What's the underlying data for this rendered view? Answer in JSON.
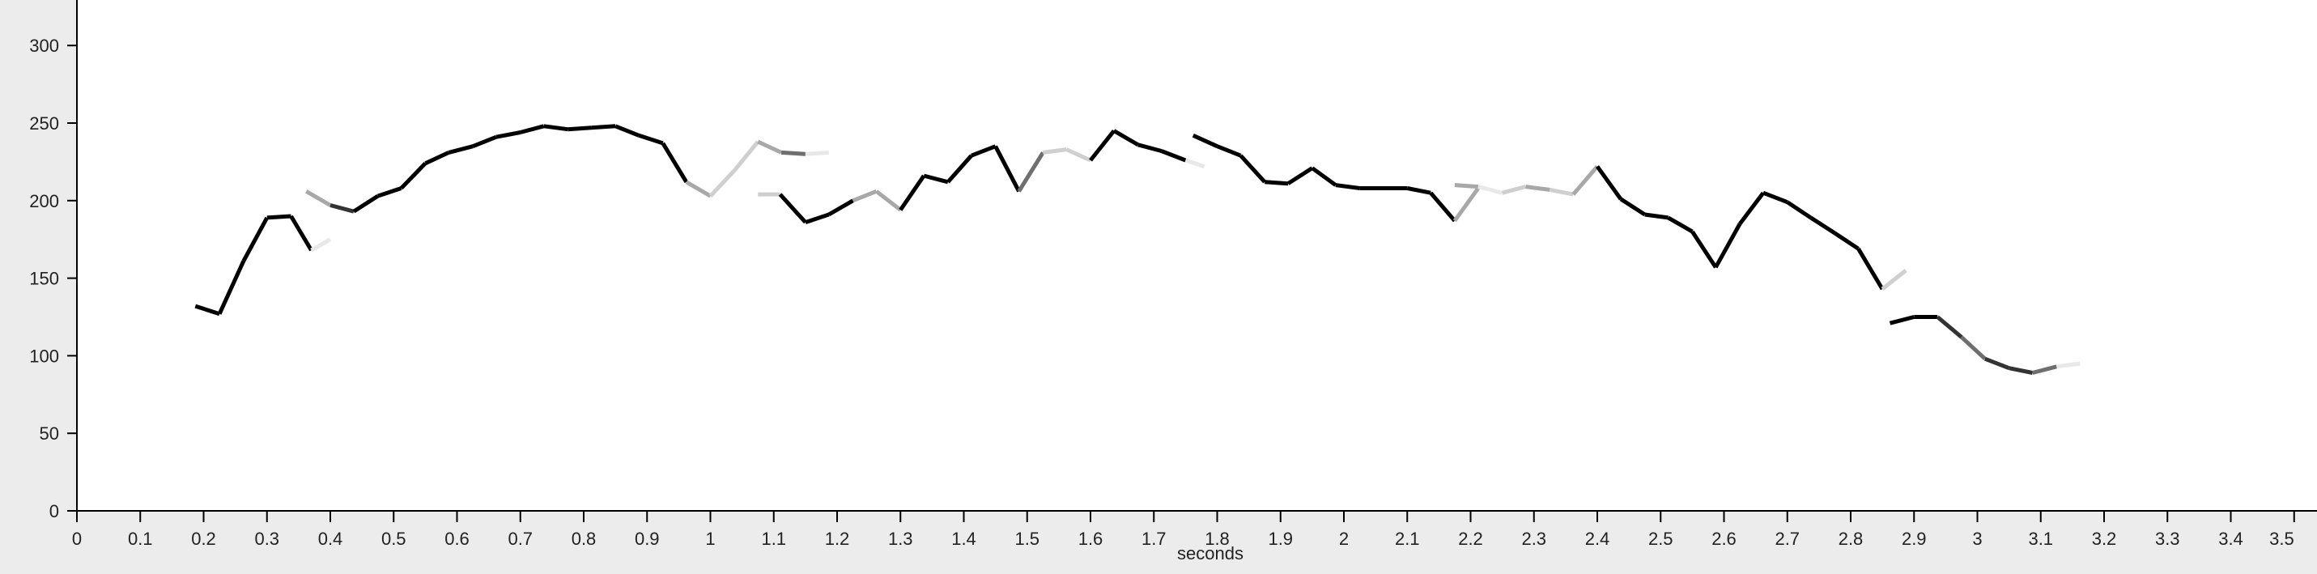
{
  "chart_data": {
    "type": "line",
    "title": "",
    "xlabel": "seconds",
    "ylabel": "",
    "xlim": [
      0,
      3.5
    ],
    "ylim": [
      0,
      300
    ],
    "grid": false,
    "x_ticks": [
      "0",
      "0.1",
      "0.2",
      "0.3",
      "0.4",
      "0.5",
      "0.6",
      "0.7",
      "0.8",
      "0.9",
      "1",
      "1.1",
      "1.2",
      "1.3",
      "1.4",
      "1.5",
      "1.6",
      "1.7",
      "1.8",
      "1.9",
      "2",
      "2.1",
      "2.2",
      "2.3",
      "2.4",
      "2.5",
      "2.6",
      "2.7",
      "2.8",
      "2.9",
      "3",
      "3.1",
      "3.2",
      "3.3",
      "3.4",
      "3.5"
    ],
    "y_ticks": [
      "0",
      "50",
      "100",
      "150",
      "200",
      "250",
      "300"
    ],
    "colors": {
      "background": "#ececec",
      "plot_background": "#ffffff",
      "axis": "#000000",
      "trace_shades": [
        "#000000",
        "#333333",
        "#6e6e6e",
        "#a8a8a8",
        "#cfcfcf",
        "#e8e8e8"
      ]
    },
    "segments": [
      {
        "x": [
          0.187,
          0.225
        ],
        "y": [
          132,
          127
        ],
        "color": "#000000"
      },
      {
        "x": [
          0.225,
          0.263
        ],
        "y": [
          127,
          161
        ],
        "color": "#000000"
      },
      {
        "x": [
          0.263,
          0.3
        ],
        "y": [
          161,
          189
        ],
        "color": "#000000"
      },
      {
        "x": [
          0.3,
          0.338
        ],
        "y": [
          189,
          190
        ],
        "color": "#000000"
      },
      {
        "x": [
          0.338,
          0.37
        ],
        "y": [
          190,
          168
        ],
        "color": "#000000"
      },
      {
        "x": [
          0.37,
          0.4
        ],
        "y": [
          168,
          175
        ],
        "color": "#e8e8e8"
      },
      {
        "x": [
          0.362,
          0.4
        ],
        "y": [
          206,
          197
        ],
        "color": "#a8a8a8"
      },
      {
        "x": [
          0.4,
          0.437
        ],
        "y": [
          197,
          193
        ],
        "color": "#333333"
      },
      {
        "x": [
          0.437,
          0.475
        ],
        "y": [
          193,
          203
        ],
        "color": "#000000"
      },
      {
        "x": [
          0.475,
          0.512
        ],
        "y": [
          203,
          208
        ],
        "color": "#000000"
      },
      {
        "x": [
          0.512,
          0.55
        ],
        "y": [
          208,
          224
        ],
        "color": "#000000"
      },
      {
        "x": [
          0.55,
          0.587
        ],
        "y": [
          224,
          231
        ],
        "color": "#000000"
      },
      {
        "x": [
          0.587,
          0.625
        ],
        "y": [
          231,
          235
        ],
        "color": "#000000"
      },
      {
        "x": [
          0.625,
          0.662
        ],
        "y": [
          235,
          241
        ],
        "color": "#000000"
      },
      {
        "x": [
          0.662,
          0.7
        ],
        "y": [
          241,
          244
        ],
        "color": "#000000"
      },
      {
        "x": [
          0.7,
          0.737
        ],
        "y": [
          244,
          248
        ],
        "color": "#000000"
      },
      {
        "x": [
          0.737,
          0.775
        ],
        "y": [
          248,
          246
        ],
        "color": "#000000"
      },
      {
        "x": [
          0.775,
          0.812
        ],
        "y": [
          246,
          247
        ],
        "color": "#000000"
      },
      {
        "x": [
          0.812,
          0.85
        ],
        "y": [
          247,
          248
        ],
        "color": "#000000"
      },
      {
        "x": [
          0.85,
          0.887
        ],
        "y": [
          248,
          242
        ],
        "color": "#000000"
      },
      {
        "x": [
          0.887,
          0.925
        ],
        "y": [
          242,
          237
        ],
        "color": "#000000"
      },
      {
        "x": [
          0.925,
          0.962
        ],
        "y": [
          237,
          212
        ],
        "color": "#000000"
      },
      {
        "x": [
          0.962,
          1.0
        ],
        "y": [
          212,
          203
        ],
        "color": "#a8a8a8"
      },
      {
        "x": [
          1.0,
          1.037
        ],
        "y": [
          203,
          219
        ],
        "color": "#cfcfcf"
      },
      {
        "x": [
          1.037,
          1.075
        ],
        "y": [
          219,
          238
        ],
        "color": "#cfcfcf"
      },
      {
        "x": [
          1.075,
          1.112
        ],
        "y": [
          238,
          231
        ],
        "color": "#a8a8a8"
      },
      {
        "x": [
          1.112,
          1.15
        ],
        "y": [
          231,
          230
        ],
        "color": "#6e6e6e"
      },
      {
        "x": [
          1.15,
          1.187
        ],
        "y": [
          230,
          231
        ],
        "color": "#e8e8e8"
      },
      {
        "x": [
          1.075,
          1.11
        ],
        "y": [
          204,
          204
        ],
        "color": "#cfcfcf"
      },
      {
        "x": [
          1.11,
          1.15
        ],
        "y": [
          204,
          186
        ],
        "color": "#000000"
      },
      {
        "x": [
          1.15,
          1.187
        ],
        "y": [
          186,
          191
        ],
        "color": "#000000"
      },
      {
        "x": [
          1.187,
          1.225
        ],
        "y": [
          191,
          200
        ],
        "color": "#000000"
      },
      {
        "x": [
          1.225,
          1.262
        ],
        "y": [
          200,
          206
        ],
        "color": "#a8a8a8"
      },
      {
        "x": [
          1.262,
          1.3
        ],
        "y": [
          206,
          194
        ],
        "color": "#a8a8a8"
      },
      {
        "x": [
          1.3,
          1.337
        ],
        "y": [
          194,
          216
        ],
        "color": "#000000"
      },
      {
        "x": [
          1.337,
          1.375
        ],
        "y": [
          216,
          212
        ],
        "color": "#000000"
      },
      {
        "x": [
          1.375,
          1.412
        ],
        "y": [
          212,
          229
        ],
        "color": "#000000"
      },
      {
        "x": [
          1.412,
          1.45
        ],
        "y": [
          229,
          235
        ],
        "color": "#000000"
      },
      {
        "x": [
          1.45,
          1.487
        ],
        "y": [
          235,
          206
        ],
        "color": "#000000"
      },
      {
        "x": [
          1.487,
          1.525
        ],
        "y": [
          206,
          231
        ],
        "color": "#6e6e6e"
      },
      {
        "x": [
          1.525,
          1.562
        ],
        "y": [
          231,
          233
        ],
        "color": "#cfcfcf"
      },
      {
        "x": [
          1.562,
          1.6
        ],
        "y": [
          233,
          226
        ],
        "color": "#cfcfcf"
      },
      {
        "x": [
          1.6,
          1.637
        ],
        "y": [
          226,
          245
        ],
        "color": "#000000"
      },
      {
        "x": [
          1.637,
          1.675
        ],
        "y": [
          245,
          236
        ],
        "color": "#000000"
      },
      {
        "x": [
          1.675,
          1.712
        ],
        "y": [
          236,
          232
        ],
        "color": "#000000"
      },
      {
        "x": [
          1.712,
          1.75
        ],
        "y": [
          232,
          226
        ],
        "color": "#000000"
      },
      {
        "x": [
          1.75,
          1.78
        ],
        "y": [
          226,
          222
        ],
        "color": "#e8e8e8"
      },
      {
        "x": [
          1.762,
          1.8
        ],
        "y": [
          242,
          235
        ],
        "color": "#000000"
      },
      {
        "x": [
          1.8,
          1.837
        ],
        "y": [
          235,
          229
        ],
        "color": "#000000"
      },
      {
        "x": [
          1.837,
          1.875
        ],
        "y": [
          229,
          212
        ],
        "color": "#000000"
      },
      {
        "x": [
          1.875,
          1.912
        ],
        "y": [
          212,
          211
        ],
        "color": "#000000"
      },
      {
        "x": [
          1.912,
          1.95
        ],
        "y": [
          211,
          221
        ],
        "color": "#000000"
      },
      {
        "x": [
          1.95,
          1.987
        ],
        "y": [
          221,
          210
        ],
        "color": "#000000"
      },
      {
        "x": [
          1.987,
          2.025
        ],
        "y": [
          210,
          208
        ],
        "color": "#000000"
      },
      {
        "x": [
          2.025,
          2.062
        ],
        "y": [
          208,
          208
        ],
        "color": "#000000"
      },
      {
        "x": [
          2.062,
          2.1
        ],
        "y": [
          208,
          208
        ],
        "color": "#000000"
      },
      {
        "x": [
          2.1,
          2.137
        ],
        "y": [
          208,
          205
        ],
        "color": "#000000"
      },
      {
        "x": [
          2.137,
          2.175
        ],
        "y": [
          205,
          187
        ],
        "color": "#000000"
      },
      {
        "x": [
          2.175,
          2.212
        ],
        "y": [
          187,
          208
        ],
        "color": "#a8a8a8"
      },
      {
        "x": [
          2.175,
          2.212
        ],
        "y": [
          210,
          209
        ],
        "color": "#a8a8a8"
      },
      {
        "x": [
          2.212,
          2.25
        ],
        "y": [
          209,
          205
        ],
        "color": "#e8e8e8"
      },
      {
        "x": [
          2.25,
          2.287
        ],
        "y": [
          205,
          209
        ],
        "color": "#cfcfcf"
      },
      {
        "x": [
          2.287,
          2.325
        ],
        "y": [
          209,
          207
        ],
        "color": "#a8a8a8"
      },
      {
        "x": [
          2.325,
          2.362
        ],
        "y": [
          207,
          204
        ],
        "color": "#cfcfcf"
      },
      {
        "x": [
          2.362,
          2.4
        ],
        "y": [
          204,
          222
        ],
        "color": "#a8a8a8"
      },
      {
        "x": [
          2.4,
          2.437
        ],
        "y": [
          222,
          201
        ],
        "color": "#000000"
      },
      {
        "x": [
          2.437,
          2.475
        ],
        "y": [
          201,
          191
        ],
        "color": "#000000"
      },
      {
        "x": [
          2.475,
          2.512
        ],
        "y": [
          191,
          189
        ],
        "color": "#000000"
      },
      {
        "x": [
          2.512,
          2.55
        ],
        "y": [
          189,
          180
        ],
        "color": "#000000"
      },
      {
        "x": [
          2.55,
          2.587
        ],
        "y": [
          180,
          157
        ],
        "color": "#000000"
      },
      {
        "x": [
          2.587,
          2.625
        ],
        "y": [
          157,
          185
        ],
        "color": "#000000"
      },
      {
        "x": [
          2.625,
          2.662
        ],
        "y": [
          185,
          205
        ],
        "color": "#000000"
      },
      {
        "x": [
          2.662,
          2.7
        ],
        "y": [
          205,
          199
        ],
        "color": "#000000"
      },
      {
        "x": [
          2.7,
          2.737
        ],
        "y": [
          199,
          189
        ],
        "color": "#000000"
      },
      {
        "x": [
          2.737,
          2.775
        ],
        "y": [
          189,
          179
        ],
        "color": "#000000"
      },
      {
        "x": [
          2.775,
          2.812
        ],
        "y": [
          179,
          169
        ],
        "color": "#000000"
      },
      {
        "x": [
          2.812,
          2.85
        ],
        "y": [
          169,
          143
        ],
        "color": "#000000"
      },
      {
        "x": [
          2.85,
          2.887
        ],
        "y": [
          143,
          155
        ],
        "color": "#cfcfcf"
      },
      {
        "x": [
          2.862,
          2.9
        ],
        "y": [
          121,
          125
        ],
        "color": "#000000"
      },
      {
        "x": [
          2.9,
          2.937
        ],
        "y": [
          125,
          125
        ],
        "color": "#000000"
      },
      {
        "x": [
          2.937,
          2.975
        ],
        "y": [
          125,
          112
        ],
        "color": "#333333"
      },
      {
        "x": [
          2.975,
          3.012
        ],
        "y": [
          112,
          98
        ],
        "color": "#6e6e6e"
      },
      {
        "x": [
          3.012,
          3.05
        ],
        "y": [
          98,
          92
        ],
        "color": "#333333"
      },
      {
        "x": [
          3.05,
          3.087
        ],
        "y": [
          92,
          89
        ],
        "color": "#333333"
      },
      {
        "x": [
          3.087,
          3.125
        ],
        "y": [
          89,
          93
        ],
        "color": "#6e6e6e"
      },
      {
        "x": [
          3.125,
          3.162
        ],
        "y": [
          93,
          95
        ],
        "color": "#e8e8e8"
      }
    ]
  }
}
